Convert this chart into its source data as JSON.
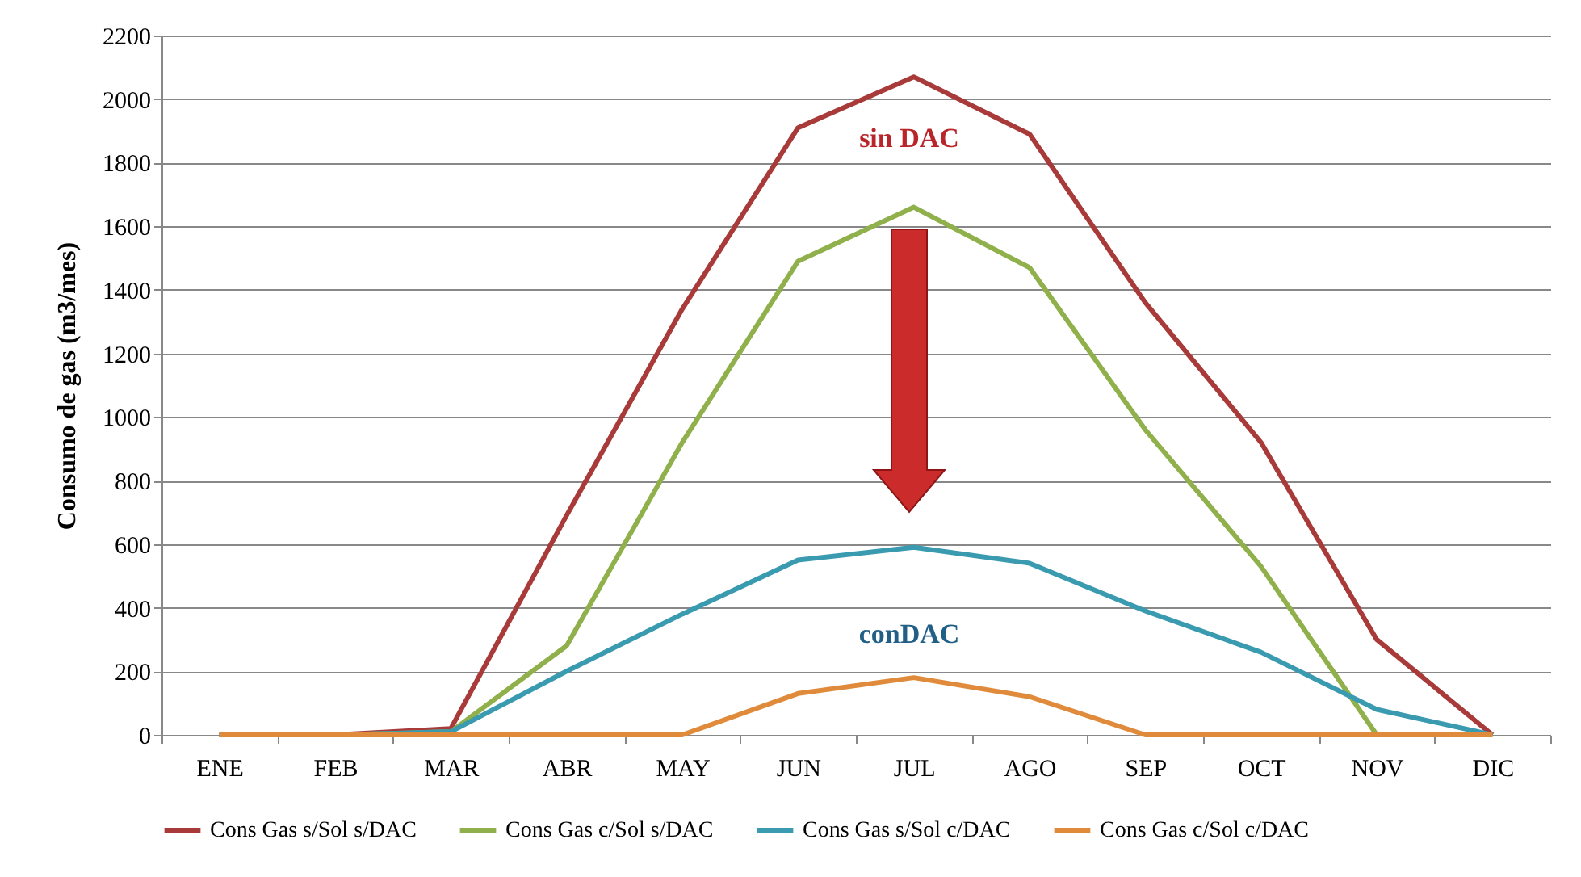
{
  "chart_data": {
    "type": "line",
    "ylabel": "Consumo de gas (m3/mes)",
    "categories": [
      "ENE",
      "FEB",
      "MAR",
      "ABR",
      "MAY",
      "JUN",
      "JUL",
      "AGO",
      "SEP",
      "OCT",
      "NOV",
      "DIC"
    ],
    "series": [
      {
        "name": "Cons Gas s/Sol s/DAC",
        "color": "#a83a3a",
        "values": [
          0,
          0,
          20,
          690,
          1340,
          1910,
          2070,
          1890,
          1360,
          920,
          300,
          0
        ]
      },
      {
        "name": "Cons Gas c/Sol s/DAC",
        "color": "#8fb04a",
        "values": [
          0,
          0,
          10,
          280,
          920,
          1490,
          1660,
          1470,
          960,
          530,
          0,
          0
        ]
      },
      {
        "name": "Cons Gas s/Sol c/DAC",
        "color": "#3a9ab0",
        "values": [
          0,
          0,
          10,
          200,
          380,
          550,
          590,
          540,
          390,
          260,
          80,
          0
        ]
      },
      {
        "name": "Cons Gas c/Sol c/DAC",
        "color": "#e08a3c",
        "values": [
          0,
          0,
          0,
          0,
          0,
          130,
          180,
          120,
          0,
          0,
          0,
          0
        ]
      }
    ],
    "ylim": [
      0,
      2200
    ],
    "yticks": [
      0,
      200,
      400,
      600,
      800,
      1000,
      1200,
      1400,
      1600,
      1800,
      2000,
      2200
    ],
    "grid": "y",
    "legend": "bottom",
    "marker": "none",
    "line_style": "solid",
    "annotations": [
      "sin DAC",
      "conDAC"
    ]
  }
}
